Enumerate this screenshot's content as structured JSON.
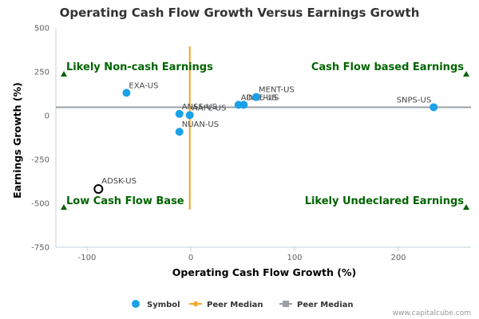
{
  "chart_data": {
    "type": "scatter",
    "title": "Operating Cash Flow Growth Versus Earnings Growth",
    "xlabel": "Operating Cash Flow Growth (%)",
    "ylabel": "Earnings Growth (%)",
    "xlim": [
      -130,
      270
    ],
    "ylim": [
      -750,
      500
    ],
    "xticks": [
      -100,
      0,
      100,
      200
    ],
    "yticks": [
      500,
      250,
      0,
      -250,
      -500,
      -750
    ],
    "grid": false,
    "legend_position": "bottom",
    "symbols": [
      {
        "name": "EXA-US",
        "x": -62,
        "y": 130,
        "label_side": "above"
      },
      {
        "name": "ANSS-US",
        "x": -11,
        "y": 10,
        "label_side": "above"
      },
      {
        "name": "AAPL-US",
        "x": -1,
        "y": 3,
        "label_side": "above"
      },
      {
        "name": "NUAN-US",
        "x": -11,
        "y": -92,
        "label_side": "above"
      },
      {
        "name": "ADBE-US",
        "x": 46,
        "y": 62,
        "label_side": "above"
      },
      {
        "name": "INTU-US",
        "x": 51,
        "y": 62,
        "label_side": "above"
      },
      {
        "name": "MENT-US",
        "x": 63,
        "y": 106,
        "label_side": "above"
      },
      {
        "name": "SNPS-US",
        "x": 234,
        "y": 48,
        "label_side": "above-left"
      }
    ],
    "highlight": {
      "name": "ADSK-US",
      "x": -89,
      "y": -418
    },
    "peer_median_x": -1,
    "peer_median_y": 48,
    "quadrant_labels": {
      "top_left": "Likely Non-cash Earnings",
      "top_right": "Cash Flow based Earnings",
      "bottom_left": "Low Cash Flow Base",
      "bottom_right": "Likely Undeclared Earnings"
    },
    "legend": [
      {
        "label": "Symbol",
        "color": "#1aa1e8",
        "marker": "circle"
      },
      {
        "label": "Peer Median",
        "color": "#f5a623",
        "marker": "diamond-line"
      },
      {
        "label": "Peer Median",
        "color": "#9aa0a6",
        "marker": "square-line"
      }
    ],
    "colors": {
      "symbol": "#1aa1e8",
      "x_median_line": "#f5a623",
      "y_median_line": "#9aa0a6",
      "quadrant_text": "#006400",
      "highlight_stroke": "#000000"
    }
  },
  "credit": "www.capitalcube.com"
}
